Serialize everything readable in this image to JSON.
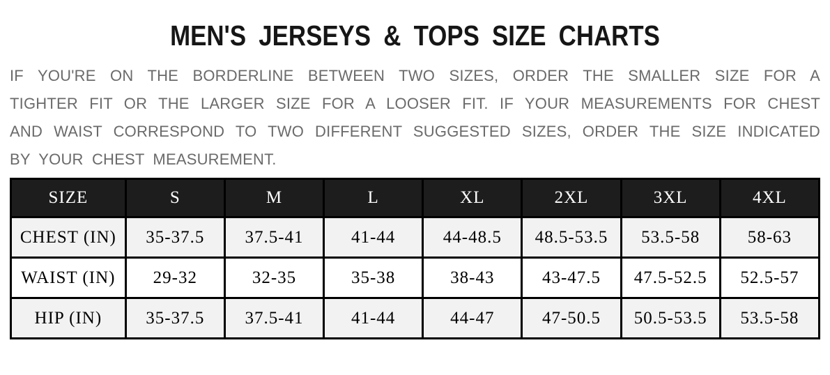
{
  "header": {
    "title": "MEN'S JERSEYS & TOPS SIZE CHARTS"
  },
  "intro": {
    "full_text": "IF YOU'RE ON THE BORDERLINE BETWEEN TWO SIZES, ORDER THE SMALLER SIZE FOR A TIGHTER FIT OR THE LARGER SIZE FOR A LOOSER FIT. IF YOUR MEASUREMENTS FOR CHEST AND WAIST CORRESPOND TO TWO DIFFERENT SUGGESTED SIZES, ORDER THE SIZE INDICATED BY YOUR CHEST MEASUREMENT.",
    "lines": [
      "IF YOU'RE ON THE BORDERLINE BETWEEN TWO SIZES, ORDER THE SMALLER SIZE FOR A",
      "TIGHTER FIT OR THE LARGER SIZE FOR A LOOSER FIT. IF YOUR MEASUREMENTS FOR CHEST",
      "AND WAIST CORRESPOND TO TWO DIFFERENT SUGGESTED SIZES, ORDER THE SIZE INDICATED",
      "BY YOUR CHEST MEASUREMENT."
    ]
  },
  "size_chart": {
    "columns": [
      "SIZE",
      "S",
      "M",
      "L",
      "XL",
      "2XL",
      "3XL",
      "4XL"
    ],
    "rows": [
      {
        "label": "CHEST (IN)",
        "values": [
          "35-37.5",
          "37.5-41",
          "41-44",
          "44-48.5",
          "48.5-53.5",
          "53.5-58",
          "58-63"
        ]
      },
      {
        "label": "WAIST (IN)",
        "values": [
          "29-32",
          "32-35",
          "35-38",
          "38-43",
          "43-47.5",
          "47.5-52.5",
          "52.5-57"
        ]
      },
      {
        "label": "HIP (IN)",
        "values": [
          "35-37.5",
          "37.5-41",
          "41-44",
          "44-47",
          "47-50.5",
          "50.5-53.5",
          "53.5-58"
        ]
      }
    ]
  },
  "colors": {
    "title_text": "#161616",
    "intro_text": "#6a6a6a",
    "table_header_bg": "#1d1d1d",
    "table_header_text": "#ffffff",
    "table_border": "#000000",
    "row_alt_bg": "#f2f2f2",
    "row_bg": "#ffffff",
    "body_text": "#000000",
    "page_bg": "#ffffff"
  }
}
